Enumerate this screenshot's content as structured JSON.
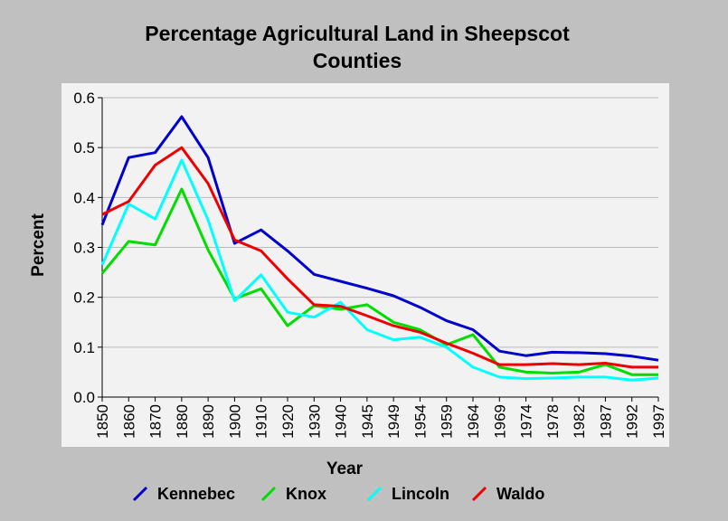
{
  "chart_data": {
    "type": "line",
    "title_lines": [
      "Percentage Agricultural Land in Sheepscot",
      "Counties"
    ],
    "xlabel": "Year",
    "ylabel": "Percent",
    "categories": [
      "1850",
      "1860",
      "1870",
      "1880",
      "1890",
      "1900",
      "1910",
      "1920",
      "1930",
      "1940",
      "1945",
      "1949",
      "1954",
      "1959",
      "1964",
      "1969",
      "1974",
      "1978",
      "1982",
      "1987",
      "1992",
      "1997"
    ],
    "ylim": [
      0,
      0.6
    ],
    "yticks": [
      "0.0",
      "0.1",
      "0.2",
      "0.3",
      "0.4",
      "0.5",
      "0.6"
    ],
    "grid": true,
    "legend_position": "bottom",
    "series": [
      {
        "name": "Kennebec",
        "color": "#0000cc",
        "values": [
          0.345,
          0.48,
          0.49,
          0.562,
          0.48,
          0.308,
          0.335,
          0.293,
          0.246,
          0.232,
          0.218,
          0.203,
          0.18,
          0.153,
          0.135,
          0.092,
          0.083,
          0.09,
          0.089,
          0.087,
          0.082,
          0.074
        ]
      },
      {
        "name": "Knox",
        "color": "#00dd00",
        "values": [
          0.248,
          0.312,
          0.305,
          0.417,
          0.295,
          0.197,
          0.217,
          0.143,
          0.183,
          0.176,
          0.185,
          0.15,
          0.135,
          0.105,
          0.125,
          0.06,
          0.05,
          0.048,
          0.05,
          0.065,
          0.045,
          0.045
        ]
      },
      {
        "name": "Lincoln",
        "color": "#00ffff",
        "values": [
          0.265,
          0.387,
          0.357,
          0.475,
          0.355,
          0.193,
          0.245,
          0.17,
          0.16,
          0.19,
          0.135,
          0.115,
          0.12,
          0.1,
          0.06,
          0.04,
          0.037,
          0.038,
          0.04,
          0.04,
          0.034,
          0.038
        ]
      },
      {
        "name": "Waldo",
        "color": "#ee0000",
        "values": [
          0.366,
          0.392,
          0.465,
          0.5,
          0.428,
          0.315,
          0.293,
          0.237,
          0.185,
          0.182,
          0.163,
          0.143,
          0.13,
          0.108,
          0.088,
          0.065,
          0.065,
          0.067,
          0.065,
          0.068,
          0.06,
          0.06
        ]
      }
    ]
  }
}
